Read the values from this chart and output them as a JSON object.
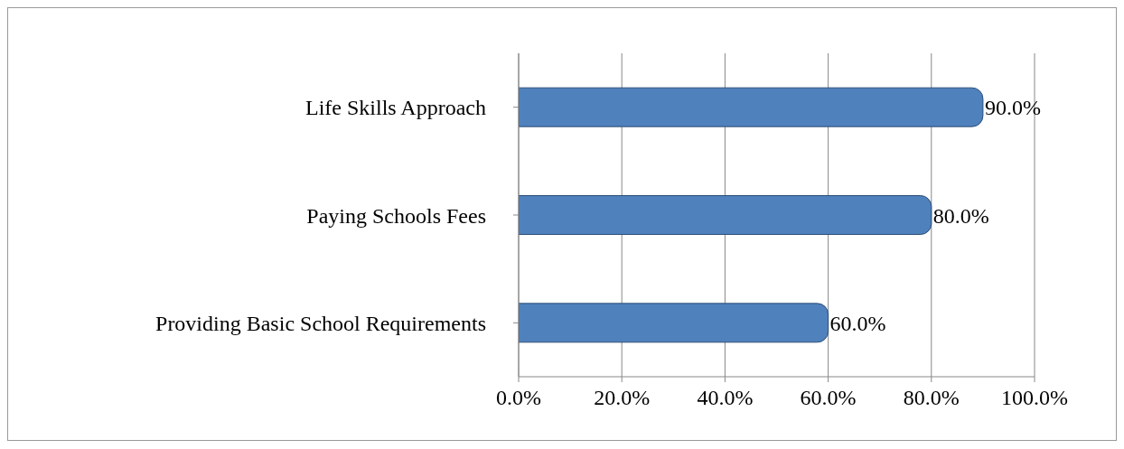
{
  "chart_data": {
    "type": "bar",
    "orientation": "horizontal",
    "categories": [
      "Life Skills Approach",
      "Paying Schools Fees ",
      "Providing Basic School Requirements"
    ],
    "values": [
      90,
      80,
      60
    ],
    "color": "#4f81bd",
    "value_labels": [
      "90.0%",
      "80.0%",
      "60.0%"
    ],
    "xlim": [
      0,
      100
    ],
    "xticks": [
      {
        "value": 0,
        "label": "0.0%"
      },
      {
        "value": 20,
        "label": "20.0%"
      },
      {
        "value": 40,
        "label": "40.0%"
      },
      {
        "value": 60,
        "label": "60.0%"
      },
      {
        "value": 80,
        "label": "80.0%"
      },
      {
        "value": 100,
        "label": "100.0%"
      }
    ],
    "grid": "x",
    "legend": false
  }
}
